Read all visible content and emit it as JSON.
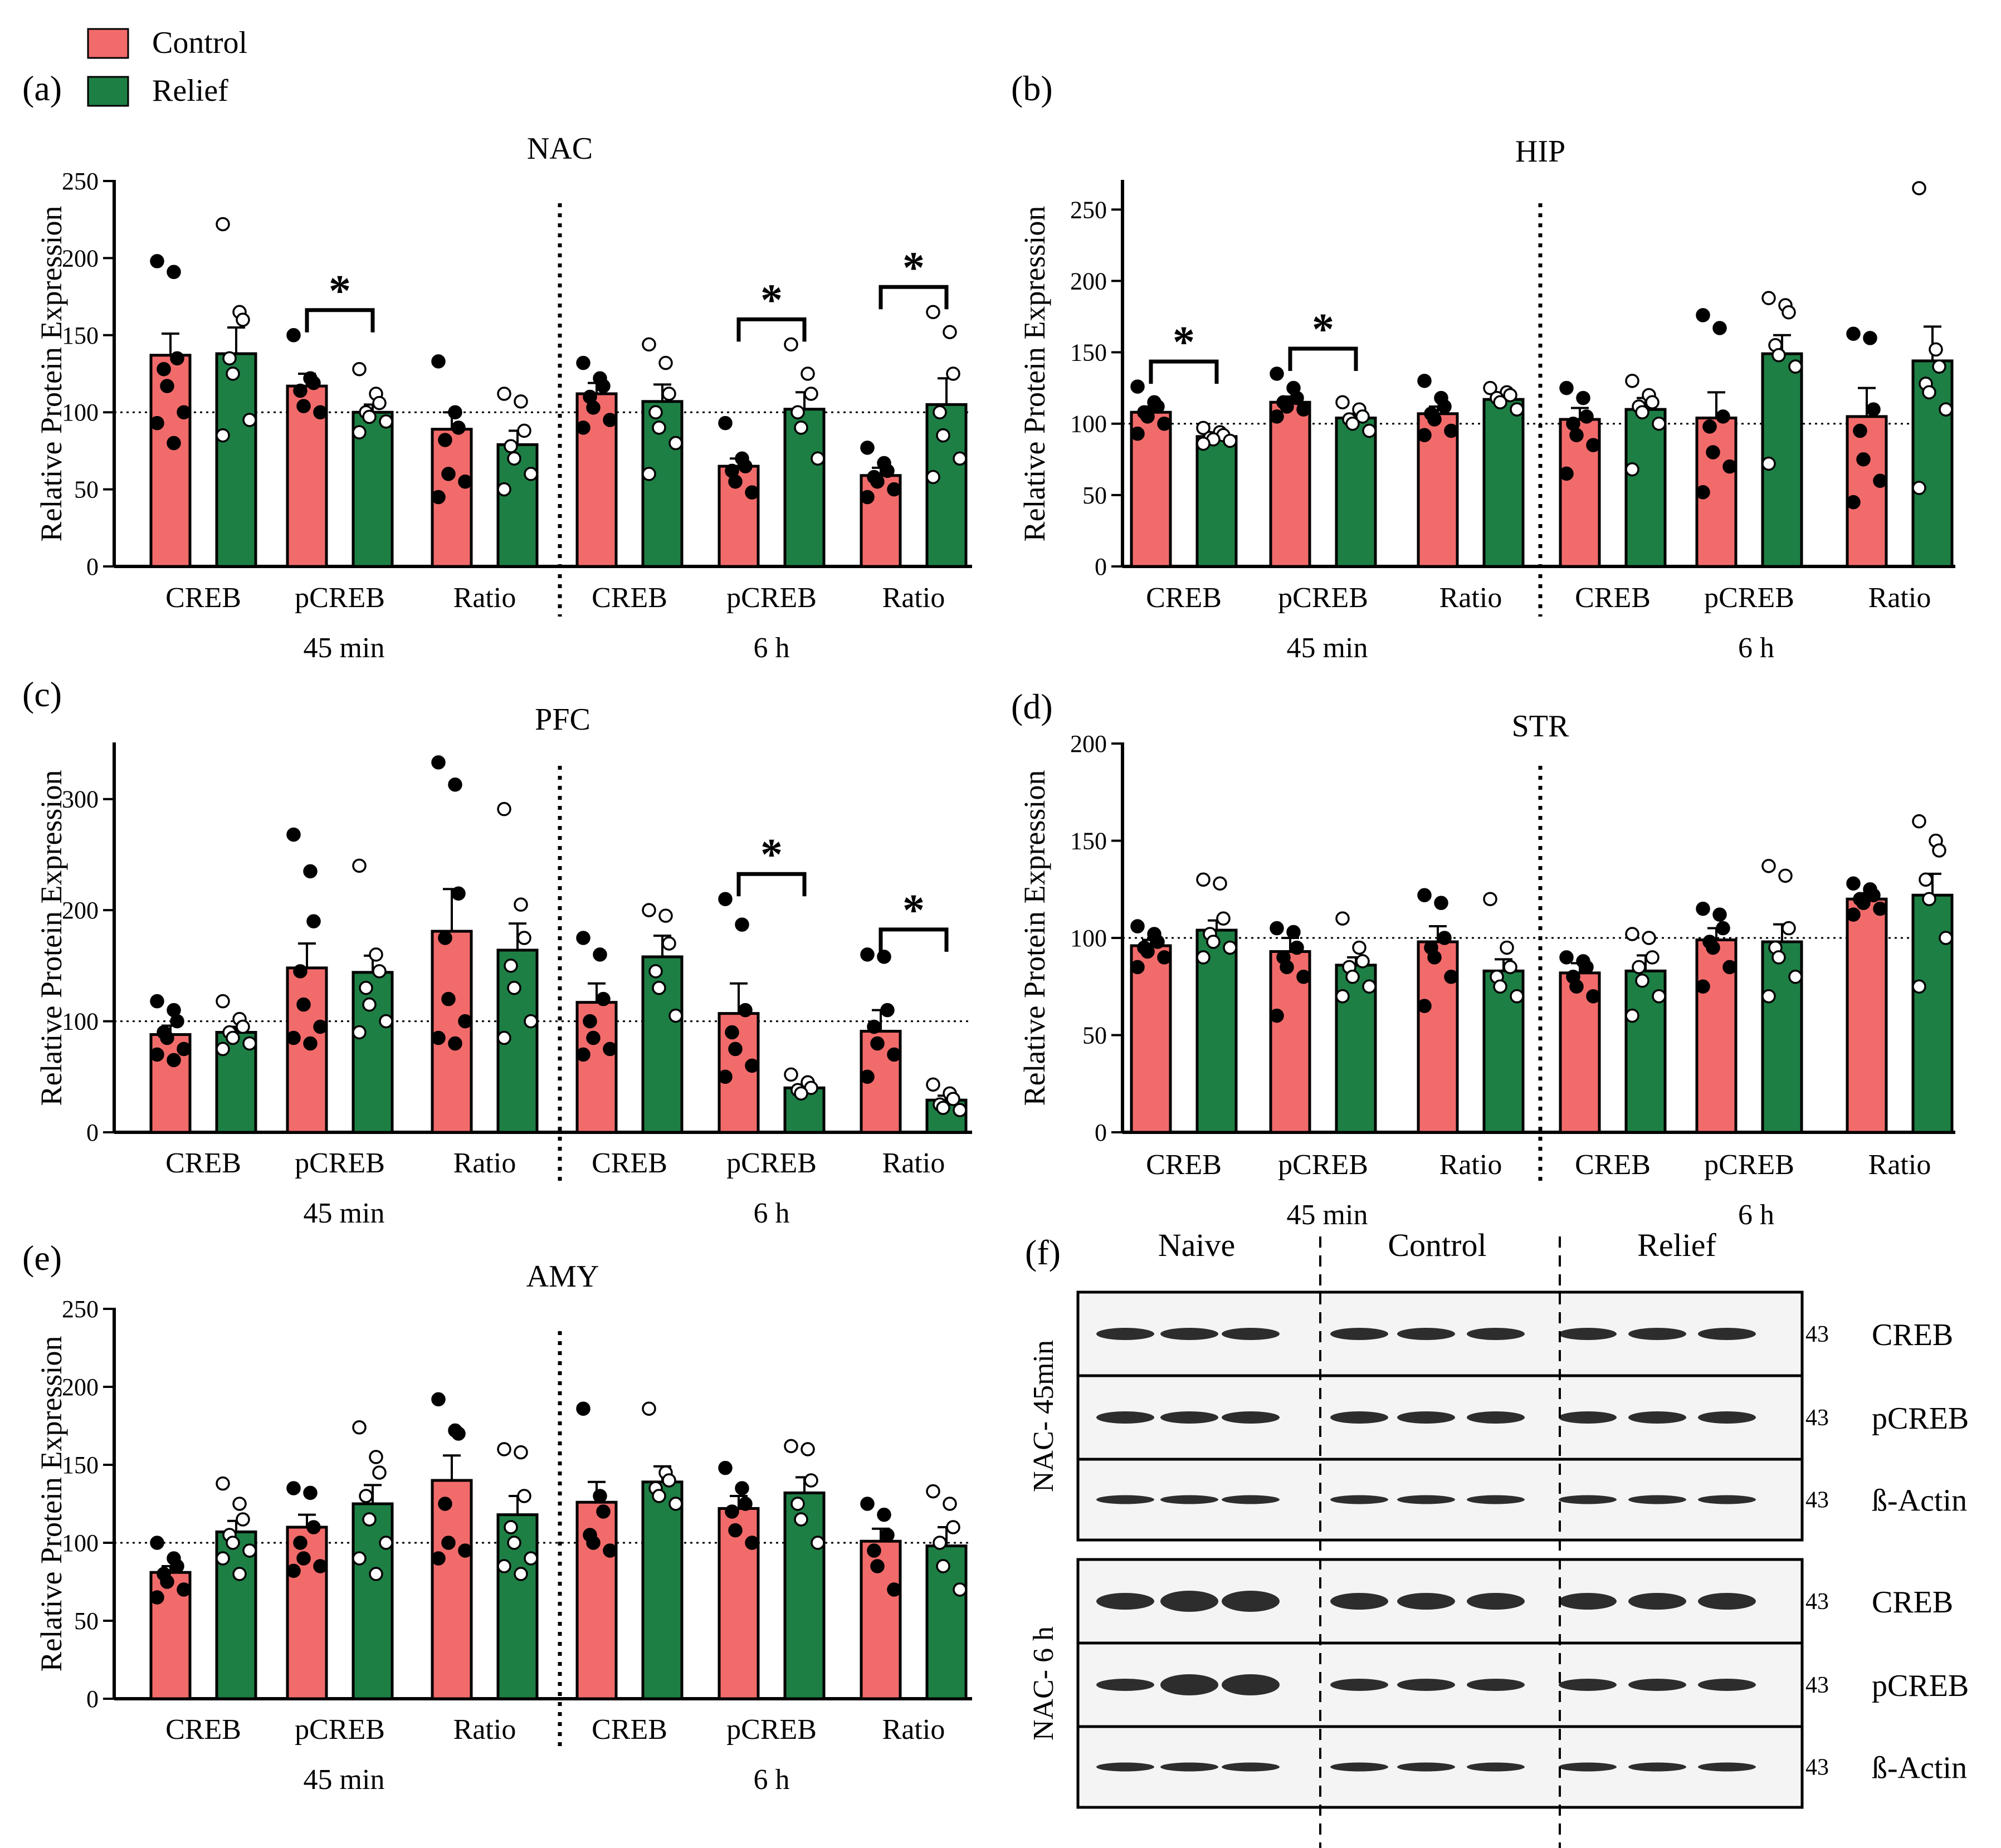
{
  "legend": [
    {
      "label": "Control",
      "color": "#F26B6B"
    },
    {
      "label": "Relief",
      "color": "#1E7F45"
    }
  ],
  "colors": {
    "control": "#F26B6B",
    "relief": "#1E7F45",
    "axis": "#000000"
  },
  "chart_data": [
    {
      "type": "bar",
      "panel": "(a)",
      "title": "NAC",
      "ylabel": "Relative Protein Expression",
      "ylim": [
        0,
        250
      ],
      "yticks": [
        0,
        50,
        100,
        150,
        200,
        250
      ],
      "reference_line": 100,
      "categories": [
        "CREB",
        "pCREB",
        "Ratio",
        "CREB",
        "pCREB",
        "Ratio"
      ],
      "timepoints": [
        {
          "label": "45 min",
          "categories": [
            0,
            1,
            2
          ]
        },
        {
          "label": "6 h",
          "categories": [
            3,
            4,
            5
          ]
        }
      ],
      "series": [
        {
          "name": "Control",
          "values": [
            137,
            117,
            89,
            112,
            65,
            59
          ],
          "sem": [
            14,
            8,
            11,
            7,
            5,
            5
          ],
          "points": [
            [
              198,
              191,
              135,
              128,
              117,
              100,
              93,
              80
            ],
            [
              150,
              122,
              119,
              114,
              104,
              100
            ],
            [
              133,
              100,
              90,
              82,
              60,
              55,
              45
            ],
            [
              132,
              122,
              117,
              110,
              103,
              95,
              90
            ],
            [
              93,
              70,
              65,
              62,
              55,
              48
            ],
            [
              77,
              67,
              62,
              58,
              55,
              50,
              45
            ]
          ]
        },
        {
          "name": "Relief",
          "values": [
            138,
            100,
            79,
            107,
            102,
            105
          ],
          "sem": [
            17,
            5,
            9,
            11,
            11,
            17
          ],
          "points": [
            [
              222,
              165,
              160,
              135,
              125,
              95,
              85
            ],
            [
              128,
              112,
              106,
              100,
              97,
              94,
              87
            ],
            [
              112,
              107,
              88,
              78,
              70,
              60,
              50
            ],
            [
              144,
              132,
              112,
              100,
              90,
              80,
              60
            ],
            [
              144,
              125,
              112,
              100,
              90,
              70
            ],
            [
              165,
              152,
              125,
              100,
              85,
              70,
              58
            ]
          ]
        }
      ],
      "significance": [
        {
          "category": 1,
          "label": "*"
        },
        {
          "category": 4,
          "label": "*"
        },
        {
          "category": 5,
          "label": "*"
        }
      ]
    },
    {
      "type": "bar",
      "panel": "(b)",
      "title": "HIP",
      "ylabel": "Relative Protein Expression",
      "ylim": [
        0,
        270
      ],
      "yticks": [
        0,
        50,
        100,
        150,
        200,
        250
      ],
      "reference_line": 100,
      "categories": [
        "CREB",
        "pCREB",
        "Ratio",
        "CREB",
        "pCREB",
        "Ratio"
      ],
      "timepoints": [
        {
          "label": "45 min",
          "categories": [
            0,
            1,
            2
          ]
        },
        {
          "label": "6 h",
          "categories": [
            3,
            4,
            5
          ]
        }
      ],
      "series": [
        {
          "name": "Control",
          "values": [
            108,
            115,
            107,
            103,
            104,
            105
          ],
          "sem": [
            4,
            4,
            5,
            8,
            18,
            20
          ],
          "points": [
            [
              126,
              115,
              112,
              108,
              105,
              100,
              93
            ],
            [
              135,
              125,
              118,
              115,
              112,
              110,
              105
            ],
            [
              130,
              118,
              112,
              107,
              103,
              95,
              92
            ],
            [
              125,
              118,
              105,
              100,
              92,
              85,
              65
            ],
            [
              176,
              167,
              105,
              98,
              80,
              70,
              52
            ],
            [
              163,
              160,
              110,
              95,
              75,
              60,
              45
            ]
          ]
        },
        {
          "name": "Relief",
          "values": [
            91,
            104,
            117,
            110,
            149,
            144
          ],
          "sem": [
            2,
            3,
            3,
            8,
            13,
            24
          ],
          "points": [
            [
              97,
              94,
              92,
              90,
              89,
              88,
              86
            ],
            [
              115,
              110,
              105,
              103,
              100,
              95
            ],
            [
              125,
              122,
              120,
              118,
              115,
              110
            ],
            [
              130,
              120,
              115,
              112,
              108,
              100,
              68
            ],
            [
              188,
              183,
              178,
              155,
              148,
              140,
              72
            ],
            [
              265,
              152,
              140,
              128,
              122,
              110,
              55
            ]
          ]
        }
      ],
      "significance": [
        {
          "category": 0,
          "label": "*"
        },
        {
          "category": 1,
          "label": "*"
        }
      ]
    },
    {
      "type": "bar",
      "panel": "(c)",
      "title": "PFC",
      "ylabel": "Relative Protein Expression",
      "ylim": [
        0,
        350
      ],
      "yticks": [
        0,
        100,
        200,
        300
      ],
      "reference_line": 100,
      "categories": [
        "CREB",
        "pCREB",
        "Ratio",
        "CREB",
        "pCREB",
        "Ratio"
      ],
      "timepoints": [
        {
          "label": "45 min",
          "categories": [
            0,
            1,
            2
          ]
        },
        {
          "label": "6 h",
          "categories": [
            3,
            4,
            5
          ]
        }
      ],
      "series": [
        {
          "name": "Control",
          "values": [
            88,
            148,
            181,
            117,
            107,
            91
          ],
          "sem": [
            8,
            22,
            38,
            17,
            27,
            19
          ],
          "points": [
            [
              118,
              110,
              100,
              90,
              85,
              75,
              70,
              65
            ],
            [
              268,
              235,
              190,
              145,
              115,
              95,
              85,
              80
            ],
            [
              333,
              313,
              215,
              175,
              120,
              100,
              85,
              80
            ],
            [
              175,
              160,
              120,
              100,
              85,
              75,
              70
            ],
            [
              210,
              187,
              110,
              90,
              75,
              60,
              50
            ],
            [
              160,
              158,
              110,
              95,
              80,
              70,
              50
            ]
          ]
        },
        {
          "name": "Relief",
          "values": [
            90,
            144,
            164,
            158,
            40,
            29
          ],
          "sem": [
            5,
            15,
            24,
            19,
            3,
            4
          ],
          "points": [
            [
              118,
              102,
              95,
              90,
              85,
              80,
              75
            ],
            [
              240,
              160,
              145,
              130,
              115,
              100,
              90
            ],
            [
              291,
              205,
              175,
              150,
              130,
              100,
              85
            ],
            [
              200,
              195,
              170,
              145,
              130,
              105
            ],
            [
              52,
              45,
              40,
              38,
              35
            ],
            [
              43,
              35,
              30,
              25,
              22,
              20
            ]
          ]
        }
      ],
      "significance": [
        {
          "category": 4,
          "label": "*"
        },
        {
          "category": 5,
          "label": "*"
        }
      ]
    },
    {
      "type": "bar",
      "panel": "(d)",
      "title": "STR",
      "ylabel": "Relative Protein Expression",
      "ylim": [
        0,
        200
      ],
      "yticks": [
        0,
        50,
        100,
        150,
        200
      ],
      "reference_line": 100,
      "categories": [
        "CREB",
        "pCREB",
        "Ratio",
        "CREB",
        "pCREB",
        "Ratio"
      ],
      "timepoints": [
        {
          "label": "45 min",
          "categories": [
            0,
            1,
            2
          ]
        },
        {
          "label": "6 h",
          "categories": [
            3,
            4,
            5
          ]
        }
      ],
      "series": [
        {
          "name": "Control",
          "values": [
            96,
            93,
            98,
            82,
            99,
            120
          ],
          "sem": [
            3,
            7,
            8,
            5,
            6,
            3
          ],
          "points": [
            [
              106,
              102,
              98,
              95,
              93,
              90,
              85
            ],
            [
              105,
              103,
              95,
              90,
              85,
              80,
              60
            ],
            [
              122,
              118,
              100,
              95,
              90,
              80,
              65
            ],
            [
              90,
              88,
              85,
              80,
              75,
              70
            ],
            [
              115,
              112,
              105,
              98,
              95,
              85,
              75
            ],
            [
              128,
              125,
              122,
              120,
              118,
              115,
              112
            ]
          ]
        },
        {
          "name": "Relief",
          "values": [
            104,
            86,
            83,
            83,
            98,
            122
          ],
          "sem": [
            5,
            4,
            6,
            8,
            9,
            11
          ],
          "points": [
            [
              130,
              128,
              110,
              102,
              98,
              95,
              90
            ],
            [
              110,
              95,
              88,
              85,
              80,
              75,
              70
            ],
            [
              120,
              95,
              85,
              80,
              75,
              70
            ],
            [
              102,
              100,
              90,
              85,
              78,
              70,
              60
            ],
            [
              137,
              132,
              105,
              95,
              90,
              80,
              70
            ],
            [
              160,
              150,
              145,
              130,
              120,
              100,
              75
            ]
          ]
        }
      ],
      "significance": []
    },
    {
      "type": "bar",
      "panel": "(e)",
      "title": "AMY",
      "ylabel": "Relative Protein Expression",
      "ylim": [
        0,
        250
      ],
      "yticks": [
        0,
        50,
        100,
        150,
        200,
        250
      ],
      "reference_line": 100,
      "categories": [
        "CREB",
        "pCREB",
        "Ratio",
        "CREB",
        "pCREB",
        "Ratio"
      ],
      "timepoints": [
        {
          "label": "45 min",
          "categories": [
            0,
            1,
            2
          ]
        },
        {
          "label": "6 h",
          "categories": [
            3,
            4,
            5
          ]
        }
      ],
      "series": [
        {
          "name": "Control",
          "values": [
            81,
            110,
            140,
            126,
            122,
            101
          ],
          "sem": [
            4,
            8,
            16,
            13,
            8,
            8
          ],
          "points": [
            [
              100,
              90,
              85,
              80,
              75,
              70,
              65
            ],
            [
              135,
              132,
              110,
              100,
              90,
              85,
              82
            ],
            [
              192,
              172,
              170,
              125,
              100,
              95,
              90
            ],
            [
              186,
              130,
              120,
              105,
              100,
              95
            ],
            [
              148,
              135,
              125,
              120,
              108,
              100
            ],
            [
              125,
              118,
              105,
              95,
              85,
              70
            ]
          ]
        },
        {
          "name": "Relief",
          "values": [
            107,
            125,
            118,
            139,
            132,
            98
          ],
          "sem": [
            7,
            12,
            12,
            10,
            10,
            12
          ],
          "points": [
            [
              138,
              125,
              115,
              105,
              100,
              95,
              90,
              80
            ],
            [
              174,
              155,
              145,
              130,
              115,
              100,
              90,
              80
            ],
            [
              160,
              158,
              130,
              110,
              100,
              90,
              85,
              80
            ],
            [
              186,
              145,
              140,
              135,
              130,
              125
            ],
            [
              162,
              160,
              140,
              125,
              115,
              100
            ],
            [
              133,
              125,
              110,
              100,
              85,
              70
            ]
          ]
        }
      ],
      "significance": []
    }
  ],
  "western": {
    "panel": "(f)",
    "groups": [
      "Naive",
      "Control",
      "Relief"
    ],
    "blocks": [
      {
        "label": "NAC- 45min",
        "rows": [
          "CREB",
          "pCREB",
          "ß-Actin"
        ]
      },
      {
        "label": "NAC- 6 h",
        "rows": [
          "CREB",
          "pCREB",
          "ß-Actin"
        ]
      }
    ],
    "marker": "43"
  }
}
